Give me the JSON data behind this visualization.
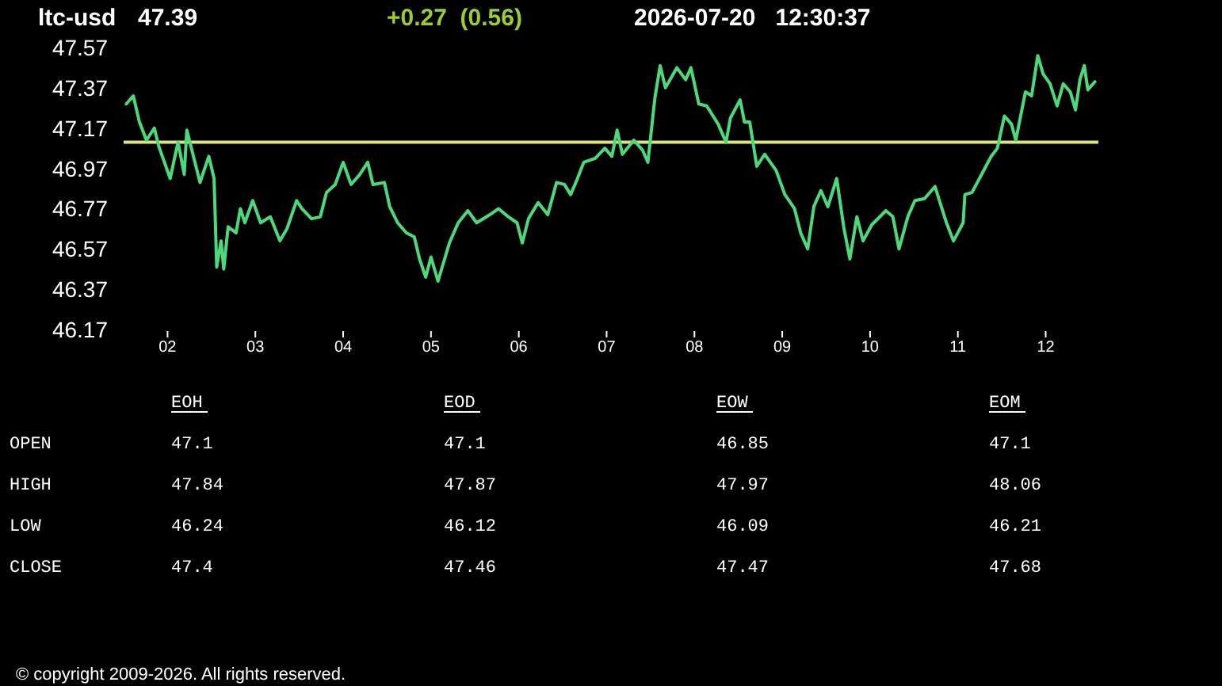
{
  "chart_data": [
    {
      "type": "line",
      "title": "ltc-usd",
      "annotations": [
        "47.39",
        "+0.27  (0.56)",
        "2026-07-20   12:30:37"
      ],
      "xlim": [
        1.5,
        12.6
      ],
      "xticks": [
        {
          "value": 2,
          "label": "02"
        },
        {
          "value": 3,
          "label": "03"
        },
        {
          "value": 4,
          "label": "04"
        },
        {
          "value": 5,
          "label": "05"
        },
        {
          "value": 6,
          "label": "06"
        },
        {
          "value": 7,
          "label": "07"
        },
        {
          "value": 8,
          "label": "08"
        },
        {
          "value": 9,
          "label": "09"
        },
        {
          "value": 10,
          "label": "10"
        },
        {
          "value": 11,
          "label": "11"
        },
        {
          "value": 12,
          "label": "12"
        }
      ],
      "ylim": [
        46.17,
        47.57
      ],
      "yticks": [
        46.17,
        46.37,
        46.57,
        46.77,
        46.97,
        47.17,
        47.37,
        47.57
      ],
      "ref_lines": [
        {
          "axis": "y",
          "value": 47.1,
          "color": "#dce67a"
        }
      ],
      "series": [
        {
          "color": "#4cd97b",
          "x": [
            1.53,
            1.61,
            1.68,
            1.76,
            1.85,
            1.9,
            2.03,
            2.12,
            2.19,
            2.22,
            2.37,
            2.47,
            2.53,
            2.56,
            2.61,
            2.64,
            2.69,
            2.78,
            2.83,
            2.88,
            2.97,
            3.06,
            3.17,
            3.28,
            3.36,
            3.47,
            3.53,
            3.64,
            3.74,
            3.81,
            3.91,
            4.0,
            4.09,
            4.19,
            4.28,
            4.34,
            4.47,
            4.53,
            4.62,
            4.72,
            4.81,
            4.87,
            4.94,
            5.0,
            5.08,
            5.21,
            5.31,
            5.42,
            5.52,
            5.67,
            5.77,
            5.88,
            5.98,
            6.04,
            6.11,
            6.22,
            6.33,
            6.43,
            6.52,
            6.59,
            6.65,
            6.74,
            6.87,
            6.98,
            7.06,
            7.12,
            7.18,
            7.31,
            7.41,
            7.47,
            7.55,
            7.61,
            7.67,
            7.8,
            7.9,
            7.96,
            8.05,
            8.14,
            8.27,
            8.36,
            8.41,
            8.52,
            8.57,
            8.63,
            8.71,
            8.8,
            8.93,
            9.03,
            9.14,
            9.21,
            9.29,
            9.36,
            9.44,
            9.52,
            9.62,
            9.7,
            9.77,
            9.85,
            9.92,
            10.02,
            10.18,
            10.26,
            10.33,
            10.43,
            10.51,
            10.62,
            10.74,
            10.79,
            10.87,
            10.95,
            11.06,
            11.08,
            11.16,
            11.27,
            11.38,
            11.45,
            11.53,
            11.61,
            11.66,
            11.77,
            11.84,
            11.91,
            11.97,
            12.05,
            12.13,
            12.2,
            12.28,
            12.34,
            12.39,
            12.44,
            12.48,
            12.56
          ],
          "values": [
            47.29,
            47.33,
            47.2,
            47.11,
            47.17,
            47.08,
            46.92,
            47.1,
            46.94,
            47.16,
            46.9,
            47.03,
            46.92,
            46.48,
            46.61,
            46.47,
            46.68,
            46.65,
            46.77,
            46.7,
            46.81,
            46.7,
            46.73,
            46.61,
            46.67,
            46.81,
            46.77,
            46.72,
            46.73,
            46.85,
            46.89,
            47.0,
            46.89,
            46.94,
            47.0,
            46.89,
            46.9,
            46.78,
            46.7,
            46.65,
            46.63,
            46.52,
            46.43,
            46.53,
            46.41,
            46.6,
            46.7,
            46.76,
            46.7,
            46.74,
            46.77,
            46.73,
            46.7,
            46.6,
            46.72,
            46.8,
            46.74,
            46.9,
            46.89,
            46.84,
            46.9,
            47.0,
            47.02,
            47.07,
            47.03,
            47.16,
            47.04,
            47.11,
            47.06,
            47.0,
            47.32,
            47.48,
            47.37,
            47.47,
            47.41,
            47.47,
            47.29,
            47.28,
            47.19,
            47.1,
            47.22,
            47.31,
            47.2,
            47.2,
            46.98,
            47.04,
            46.96,
            46.84,
            46.77,
            46.65,
            46.57,
            46.78,
            46.86,
            46.78,
            46.92,
            46.68,
            46.52,
            46.73,
            46.61,
            46.69,
            46.76,
            46.73,
            46.57,
            46.73,
            46.81,
            46.82,
            46.88,
            46.81,
            46.7,
            46.61,
            46.7,
            46.84,
            46.85,
            46.94,
            47.03,
            47.07,
            47.23,
            47.19,
            47.11,
            47.35,
            47.33,
            47.53,
            47.44,
            47.39,
            47.28,
            47.39,
            47.35,
            47.26,
            47.41,
            47.48,
            47.36,
            47.4
          ]
        }
      ]
    },
    {
      "type": "heatmap",
      "categories": [
        "EOH",
        "EOD",
        "EOW",
        "EOM"
      ],
      "y_categories": [
        "OPEN",
        "HIGH",
        "LOW",
        "CLOSE"
      ],
      "cells": [
        [
          47.1,
          47.1,
          46.85,
          47.1
        ],
        [
          47.84,
          47.87,
          47.97,
          48.06
        ],
        [
          46.24,
          46.12,
          46.09,
          46.21
        ],
        [
          47.4,
          47.46,
          47.47,
          47.68
        ]
      ],
      "data_labels": true,
      "annotations": [
        "© copyright 2009-2026. All rights reserved."
      ]
    }
  ]
}
